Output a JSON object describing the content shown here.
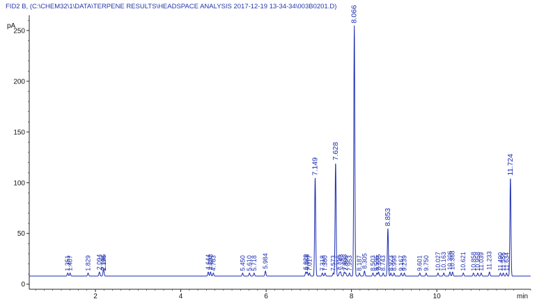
{
  "header": {
    "title": "FID2 B,  (C:\\CHEM32\\1\\DATA\\TERPENE RESULTS\\HEADSPACE ANALYSIS 2017-12-19 13-34-34\\003B0201.D)"
  },
  "chart_data": {
    "type": "line",
    "title": "",
    "ylabel": "pA",
    "xlabel": "min",
    "xlim": [
      0.45,
      12.2
    ],
    "ylim": [
      -5,
      265
    ],
    "x_ticks": [
      2,
      4,
      6,
      8,
      10
    ],
    "y_ticks": [
      0,
      50,
      100,
      150,
      200,
      250
    ],
    "baseline": 8,
    "grid": false,
    "colors": {
      "trace": "#1a2bb0",
      "axis": "#222222",
      "label": "#1a2bb0"
    },
    "peaks": [
      {
        "label": "1.351",
        "rt": 1.351,
        "height": 11
      },
      {
        "label": "1.407",
        "rt": 1.407,
        "height": 11
      },
      {
        "label": "1.829",
        "rt": 1.829,
        "height": 11
      },
      {
        "label": "2.094",
        "rt": 2.094,
        "height": 12
      },
      {
        "label": "2.186",
        "rt": 2.186,
        "height": 12
      },
      {
        "label": "2.196",
        "rt": 2.196,
        "height": 11
      },
      {
        "label": "4.644",
        "rt": 4.644,
        "height": 12
      },
      {
        "label": "4.698",
        "rt": 4.698,
        "height": 12
      },
      {
        "label": "4.763",
        "rt": 4.763,
        "height": 11
      },
      {
        "label": "5.450",
        "rt": 5.45,
        "height": 11
      },
      {
        "label": "5.610",
        "rt": 5.61,
        "height": 11
      },
      {
        "label": "5.718",
        "rt": 5.718,
        "height": 11
      },
      {
        "label": "5.984",
        "rt": 5.984,
        "height": 13
      },
      {
        "label": "6.929",
        "rt": 6.929,
        "height": 12
      },
      {
        "label": "6.965",
        "rt": 6.965,
        "height": 12
      },
      {
        "label": "7.017",
        "rt": 7.017,
        "height": 11
      },
      {
        "label": "7.149",
        "rt": 7.149,
        "height": 105
      },
      {
        "label": "7.318",
        "rt": 7.318,
        "height": 11
      },
      {
        "label": "7.380",
        "rt": 7.38,
        "height": 11
      },
      {
        "label": "7.573",
        "rt": 7.573,
        "height": 11
      },
      {
        "label": "7.628",
        "rt": 7.628,
        "height": 120
      },
      {
        "label": "7.716",
        "rt": 7.716,
        "height": 11
      },
      {
        "label": "7.743",
        "rt": 7.743,
        "height": 12
      },
      {
        "label": "7.833",
        "rt": 7.833,
        "height": 12
      },
      {
        "label": "7.866",
        "rt": 7.866,
        "height": 11
      },
      {
        "label": "7.953",
        "rt": 7.953,
        "height": 11
      },
      {
        "label": "8.066",
        "rt": 8.066,
        "height": 255
      },
      {
        "label": "8.187",
        "rt": 8.187,
        "height": 11
      },
      {
        "label": "8.305",
        "rt": 8.305,
        "height": 13
      },
      {
        "label": "8.503",
        "rt": 8.503,
        "height": 11
      },
      {
        "label": "8.595",
        "rt": 8.595,
        "height": 11
      },
      {
        "label": "8.635",
        "rt": 8.635,
        "height": 12
      },
      {
        "label": "8.743",
        "rt": 8.743,
        "height": 11
      },
      {
        "label": "8.853",
        "rt": 8.853,
        "height": 55
      },
      {
        "label": "8.923",
        "rt": 8.923,
        "height": 11
      },
      {
        "label": "8.998",
        "rt": 8.998,
        "height": 11
      },
      {
        "label": "9.167",
        "rt": 9.167,
        "height": 11
      },
      {
        "label": "9.239",
        "rt": 9.239,
        "height": 11
      },
      {
        "label": "9.601",
        "rt": 9.601,
        "height": 11
      },
      {
        "label": "9.750",
        "rt": 9.75,
        "height": 11
      },
      {
        "label": "10.027",
        "rt": 10.027,
        "height": 11
      },
      {
        "label": "10.163",
        "rt": 10.163,
        "height": 11
      },
      {
        "label": "10.306",
        "rt": 10.306,
        "height": 12
      },
      {
        "label": "10.368",
        "rt": 10.368,
        "height": 12
      },
      {
        "label": "10.621",
        "rt": 10.621,
        "height": 11
      },
      {
        "label": "10.858",
        "rt": 10.858,
        "height": 11
      },
      {
        "label": "10.958",
        "rt": 10.958,
        "height": 11
      },
      {
        "label": "11.039",
        "rt": 11.039,
        "height": 11
      },
      {
        "label": "11.233",
        "rt": 11.233,
        "height": 12
      },
      {
        "label": "11.490",
        "rt": 11.49,
        "height": 11
      },
      {
        "label": "11.556",
        "rt": 11.556,
        "height": 11
      },
      {
        "label": "11.634",
        "rt": 11.634,
        "height": 11
      },
      {
        "label": "11.724",
        "rt": 11.724,
        "height": 105
      }
    ]
  }
}
